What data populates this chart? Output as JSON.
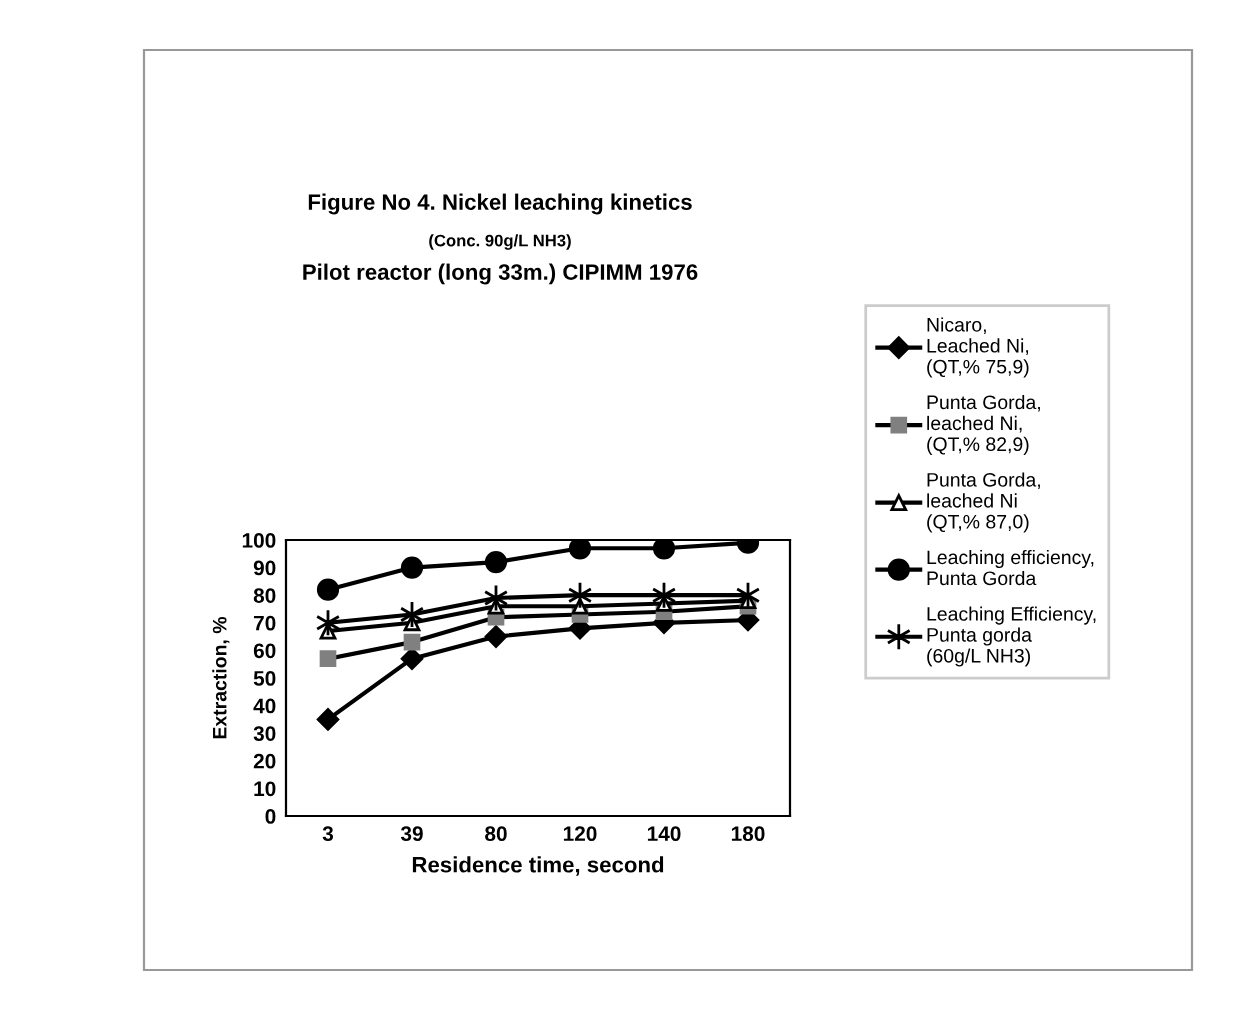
{
  "chart_data": {
    "type": "line",
    "title": "Figure No 4. Nickel leaching kinetics",
    "subtitle": "(Conc. 90g/L NH3)\nPilot reactor (long 33m.) CIPIMM 1976",
    "xlabel": "Residence time, second",
    "ylabel": "Extraction, %",
    "categories": [
      "3",
      "39",
      "80",
      "120",
      "140",
      "180"
    ],
    "series": [
      {
        "name": "Nicaro, Leached Ni, (QT,% 75,9)",
        "color": "#000000",
        "marker": "diamond",
        "values": [
          35,
          57,
          65,
          68,
          70,
          71
        ]
      },
      {
        "name": "Punta Gorda, leached Ni, (QT,% 82,9)",
        "color": "#808080",
        "marker": "square",
        "values": [
          57,
          63,
          72,
          73,
          74,
          76
        ]
      },
      {
        "name": "Punta Gorda, leached Ni (QT,% 87,0)",
        "color": "#ffffff",
        "marker": "triangle",
        "values": [
          67,
          70,
          76,
          76,
          77,
          78
        ]
      },
      {
        "name": "Leaching efficiency, Punta Gorda",
        "color": "#000000",
        "marker": "circle",
        "values": [
          82,
          90,
          92,
          97,
          97,
          99
        ]
      },
      {
        "name": "Leaching Efficiency, Punta gorda (60g/L NH3)",
        "color": "#000000",
        "marker": "cross",
        "values": [
          70,
          73,
          79,
          80,
          80,
          80
        ]
      }
    ],
    "ylim": [
      0,
      100
    ],
    "yticks": [
      0,
      10,
      20,
      30,
      40,
      50,
      60,
      70,
      80,
      90,
      100
    ],
    "grid": false,
    "legend": "right"
  }
}
